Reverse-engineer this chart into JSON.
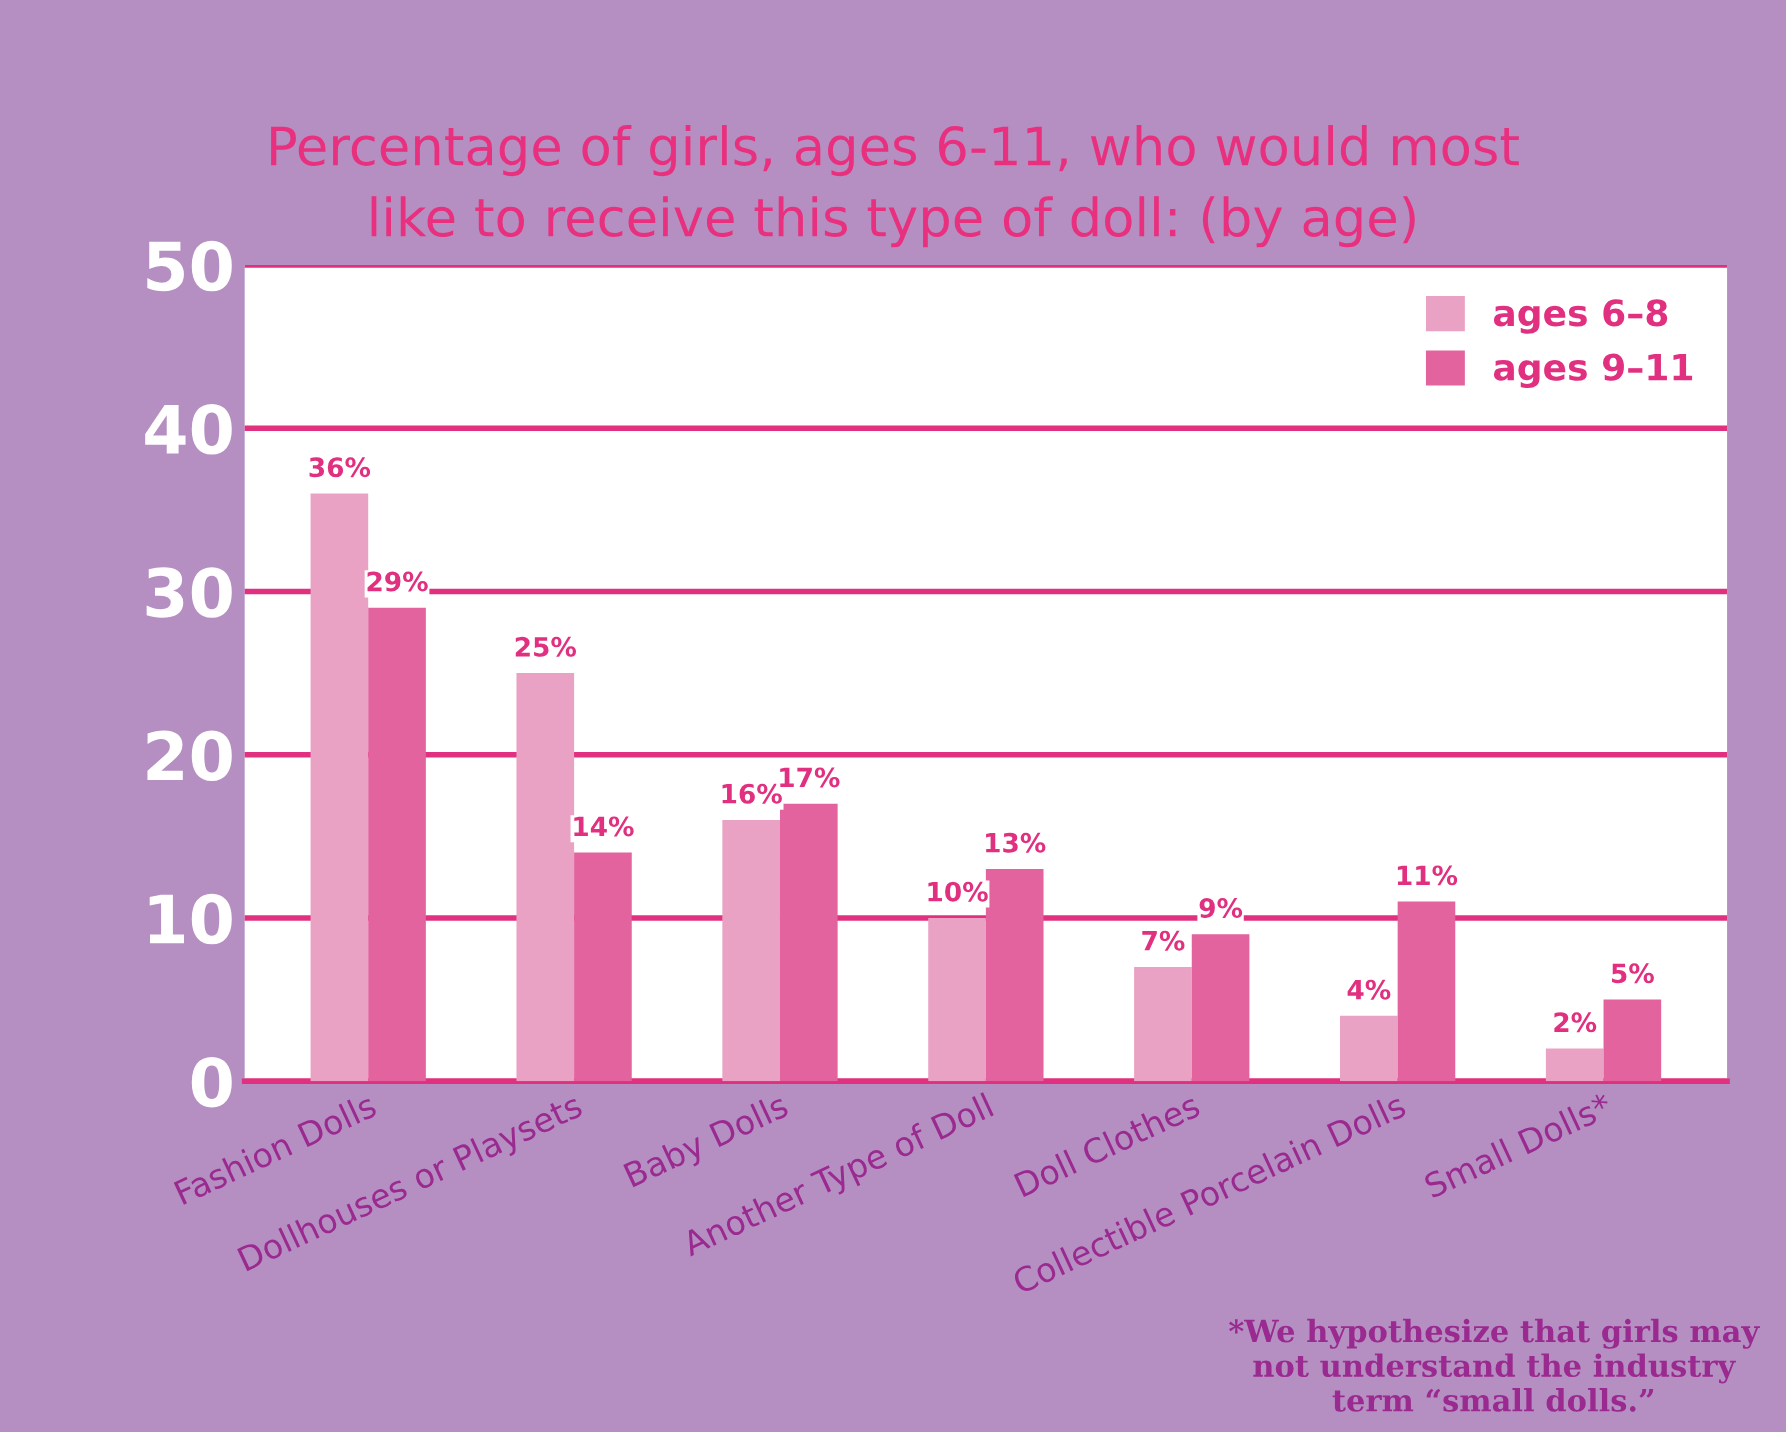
{
  "chart_data": {
    "type": "bar",
    "title": "Percentage of girls, ages 6-11, who would most\nlike to receive this type of doll: (by age)",
    "categories": [
      "Fashion Dolls",
      "Dollhouses or Playsets",
      "Baby Dolls",
      "Another Type of Doll",
      "Doll Clothes",
      "Collectible Porcelain Dolls",
      "Small Dolls*"
    ],
    "series": [
      {
        "name": "ages 6–8",
        "color": "#eaa2c4",
        "values": [
          36,
          25,
          16,
          10,
          7,
          4,
          2
        ],
        "value_labels": [
          "36%",
          "25%",
          "16%",
          "10%",
          "7%",
          "4%",
          "2%"
        ]
      },
      {
        "name": "ages 9–11",
        "color": "#e2639e",
        "values": [
          29,
          14,
          17,
          13,
          9,
          11,
          5
        ],
        "value_labels": [
          "29%",
          "14%",
          "17%",
          "13%",
          "9%",
          "11%",
          "5%"
        ]
      }
    ],
    "ylim": [
      0,
      50
    ],
    "yticks": [
      0,
      10,
      20,
      30,
      40,
      50
    ],
    "grid": "y",
    "legend": "top right",
    "annotations": [
      "*We hypothesize that girls may\nnot understand the industry\nterm “small dolls.”"
    ]
  }
}
